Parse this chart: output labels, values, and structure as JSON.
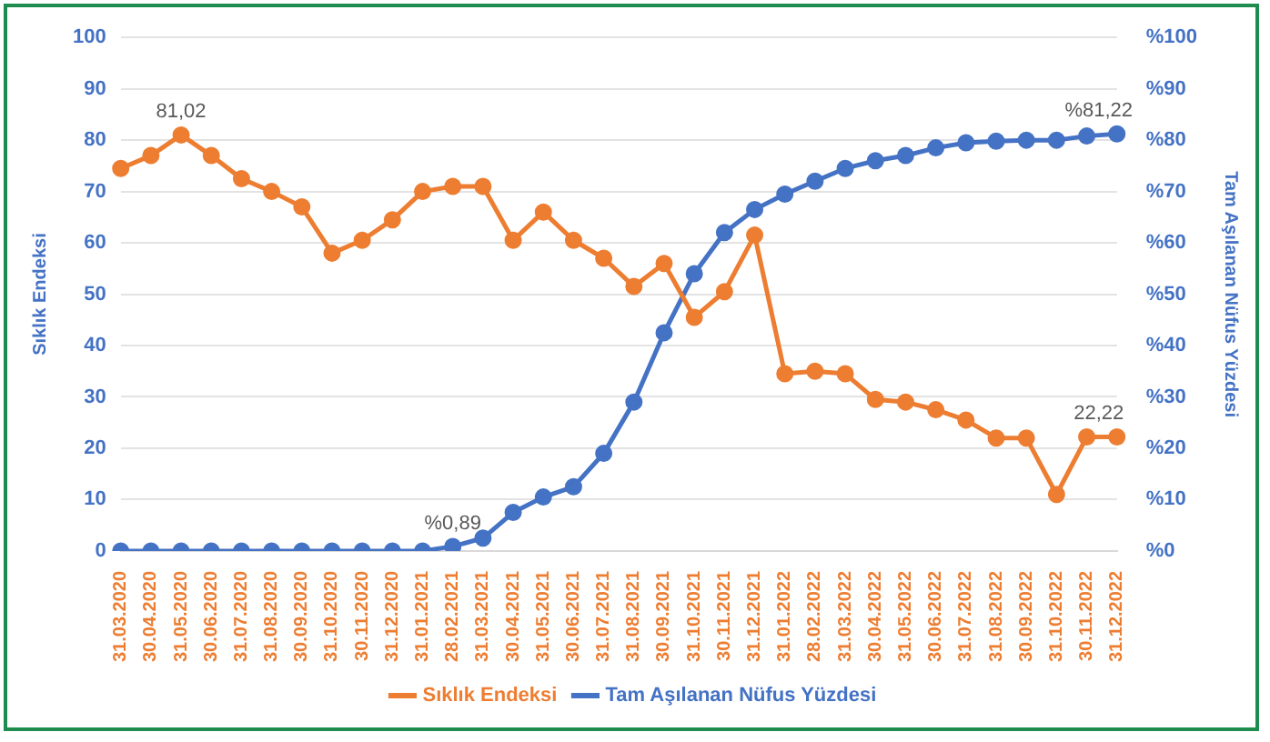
{
  "chart_data": {
    "type": "line",
    "xlabel": null,
    "ylabel": "Sıklık Endeksi",
    "y2label": "Tam Aşılanan Nüfus Yüzdesi",
    "categories": [
      "31.03.2020",
      "30.04.2020",
      "31.05.2020",
      "30.06.2020",
      "31.07.2020",
      "31.08.2020",
      "30.09.2020",
      "31.10.2020",
      "30.11.2020",
      "31.12.2020",
      "31.01.2021",
      "28.02.2021",
      "31.03.2021",
      "30.04.2021",
      "31.05.2021",
      "30.06.2021",
      "31.07.2021",
      "31.08.2021",
      "30.09.2021",
      "31.10.2021",
      "30.11.2021",
      "31.12.2021",
      "31.01.2022",
      "28.02.2022",
      "31.03.2022",
      "30.04.2022",
      "31.05.2022",
      "30.06.2022",
      "31.07.2022",
      "31.08.2022",
      "30.09.2022",
      "31.10.2022",
      "30.11.2022",
      "31.12.2022"
    ],
    "series": [
      {
        "name": "Sıklık Endeksi",
        "color": "#ed7d31",
        "values": [
          74.5,
          77,
          81.02,
          77,
          72.5,
          70,
          67,
          58,
          60.5,
          64.5,
          70,
          71,
          71,
          60.5,
          66,
          60.5,
          57,
          51.5,
          56,
          45.5,
          50.5,
          61.5,
          34.5,
          35,
          34.5,
          29.5,
          29,
          27.5,
          25.5,
          22,
          22,
          11,
          22.2,
          22.22
        ],
        "value_labels": [
          null,
          null,
          "81,02",
          null,
          null,
          null,
          null,
          null,
          null,
          null,
          null,
          null,
          null,
          null,
          null,
          null,
          null,
          null,
          null,
          null,
          null,
          null,
          null,
          null,
          null,
          null,
          null,
          null,
          null,
          null,
          null,
          null,
          null,
          "22,22"
        ]
      },
      {
        "name": "Tam Aşılanan Nüfus Yüzdesi",
        "color": "#4472c4",
        "axis": "y2",
        "values": [
          0,
          0,
          0,
          0,
          0,
          0,
          0,
          0,
          0,
          0,
          0,
          0.89,
          2.5,
          7.5,
          10.5,
          12.5,
          19,
          29,
          42.5,
          54,
          62,
          66.5,
          69.5,
          72,
          74.5,
          76,
          77,
          78.5,
          79.5,
          79.8,
          80,
          80,
          80.8,
          81.22
        ],
        "value_labels": [
          null,
          null,
          null,
          null,
          null,
          null,
          null,
          null,
          null,
          null,
          null,
          "%0,89",
          null,
          null,
          null,
          null,
          null,
          null,
          null,
          null,
          null,
          null,
          null,
          null,
          null,
          null,
          null,
          null,
          null,
          null,
          null,
          null,
          null,
          "%81,22"
        ]
      }
    ],
    "ylim": [
      0,
      100
    ],
    "yticks": [
      0,
      10,
      20,
      30,
      40,
      50,
      60,
      70,
      80,
      90,
      100
    ],
    "y2lim": [
      0,
      100
    ],
    "y2ticks": [
      {
        "value": 0,
        "label": "%0"
      },
      {
        "value": 10,
        "label": "%10"
      },
      {
        "value": 20,
        "label": "%20"
      },
      {
        "value": 30,
        "label": "%30"
      },
      {
        "value": 40,
        "label": "%40"
      },
      {
        "value": 50,
        "label": "%50"
      },
      {
        "value": 60,
        "label": "%60"
      },
      {
        "value": 70,
        "label": "%70"
      },
      {
        "value": 80,
        "label": "%80"
      },
      {
        "value": 90,
        "label": "%90"
      },
      {
        "value": 100,
        "label": "%100"
      }
    ],
    "grid": "y",
    "legend": "bottom",
    "marker": "circle",
    "line_style": "solid"
  }
}
